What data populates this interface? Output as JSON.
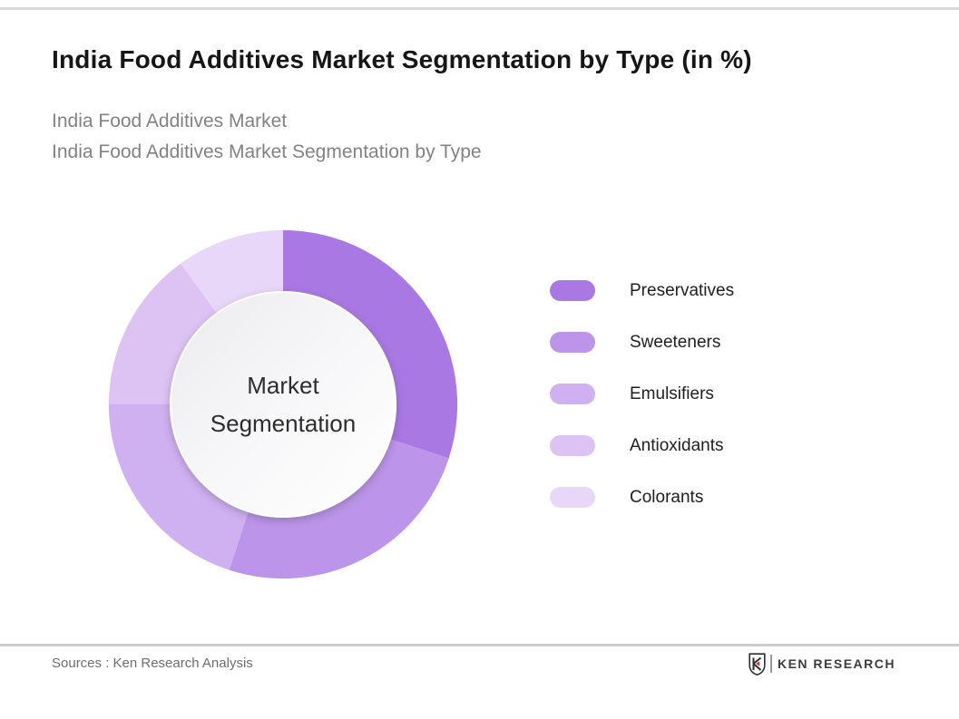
{
  "page": {
    "title": "India Food Additives Market Segmentation by Type (in %)",
    "subtitle_line1": "India Food Additives Market",
    "subtitle_line2": "India Food Additives Market Segmentation by Type"
  },
  "chart_data": {
    "type": "pie",
    "variant": "donut",
    "title": "India Food Additives Market Segmentation by Type (in %)",
    "unit": "%",
    "start_angle_deg": 0,
    "clockwise": true,
    "legend_position": "right",
    "center_label": [
      "Market",
      "Segmentation"
    ],
    "series": [
      {
        "name": "Preservatives",
        "value": 30,
        "color": "#a978e2"
      },
      {
        "name": "Sweeteners",
        "value": 25,
        "color": "#bc94e9"
      },
      {
        "name": "Emulsifiers",
        "value": 20,
        "color": "#cfb0f0"
      },
      {
        "name": "Antioxidants",
        "value": 15,
        "color": "#ddc3f4"
      },
      {
        "name": "Colorants",
        "value": 10,
        "color": "#e9d7f9"
      }
    ]
  },
  "footer": {
    "source_text": "Sources : Ken Research Analysis",
    "brand": {
      "name": "KEN RESEARCH",
      "text_color": "#3c3c3c",
      "accent_color": "#b9413a"
    }
  }
}
